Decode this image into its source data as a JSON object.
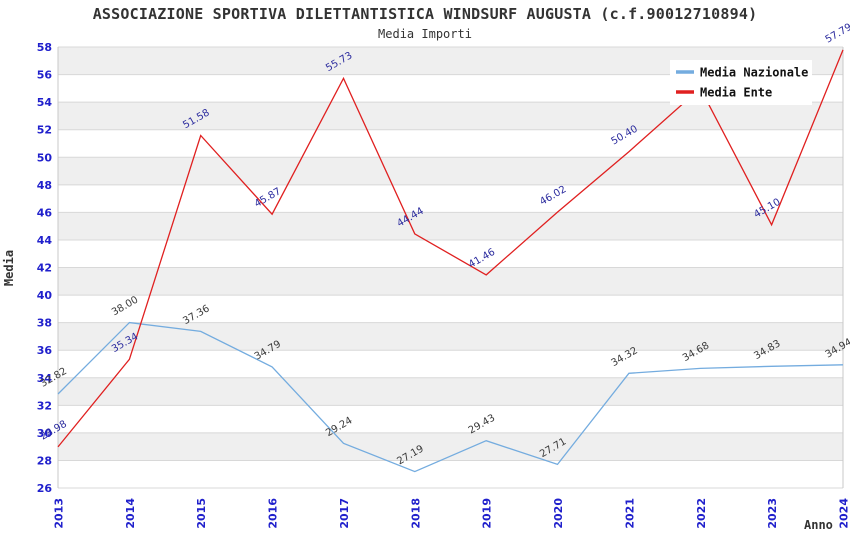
{
  "chart_data": {
    "type": "line",
    "title": "ASSOCIAZIONE SPORTIVA DILETTANTISTICA WINDSURF AUGUSTA (c.f.90012710894)",
    "subtitle": "Media Importi",
    "xlabel": "Anno",
    "ylabel": "Media",
    "x": [
      "2013",
      "2014",
      "2015",
      "2016",
      "2017",
      "2018",
      "2019",
      "2020",
      "2021",
      "2022",
      "2023",
      "2024"
    ],
    "ylim": [
      26,
      58
    ],
    "ytick_step": 2,
    "grid": "horizontal-lines-with-alternating-bands",
    "legend_position": "top-right",
    "series": [
      {
        "name": "Media Nazionale",
        "color": "#74ACDF",
        "label_color": "#3A3A3A",
        "values": [
          32.82,
          38.0,
          37.36,
          34.79,
          29.24,
          27.19,
          29.43,
          27.71,
          34.32,
          34.68,
          34.83,
          34.94
        ],
        "point_labels": [
          "32.82",
          "38.00",
          "37.36",
          "34.79",
          "29.24",
          "27.19",
          "29.43",
          "27.71",
          "34.32",
          "34.68",
          "34.83",
          "34.94"
        ]
      },
      {
        "name": "Media Ente",
        "color": "#E02020",
        "label_color": "#2B2B9E",
        "values": [
          28.98,
          35.34,
          51.58,
          45.87,
          55.73,
          44.44,
          41.46,
          46.02,
          50.4,
          55.0,
          45.1,
          57.79
        ],
        "point_labels": [
          "28.98",
          "35.34",
          "51.58",
          "45.87",
          "55.73",
          "44.44",
          "41.46",
          "46.02",
          "50.40",
          "",
          "45.10",
          "57.79"
        ]
      }
    ],
    "colors": {
      "tick_label": "#2020CC",
      "band": "#EFEFEF",
      "grid_line": "#D8D8D8",
      "border": "#C9C9C9",
      "title": "#333333",
      "legend_text": "#111111",
      "legend_bg": "#FFFFFF"
    }
  }
}
